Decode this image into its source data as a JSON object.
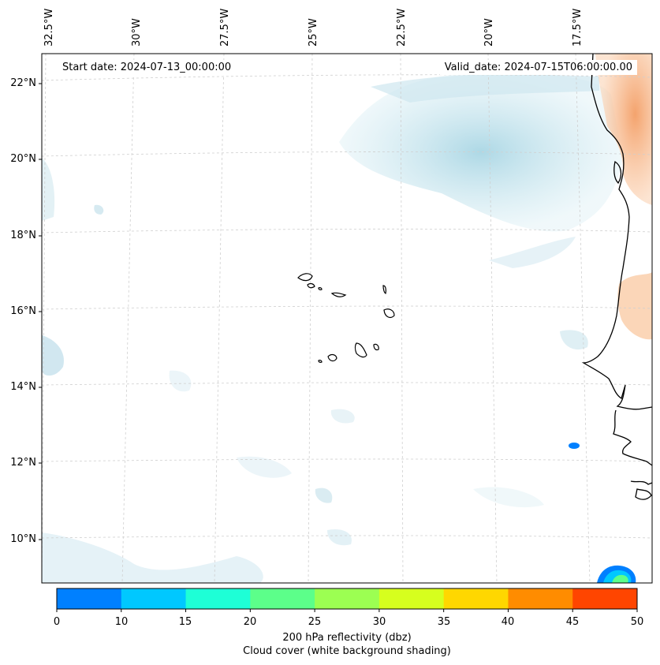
{
  "map": {
    "start_date": "Start date: 2024-07-13_00:00:00",
    "valid_date": "Valid_date: 2024-07-15T06:00:00.00",
    "lon_labels": [
      "32.5°W",
      "30°W",
      "27.5°W",
      "25°W",
      "22.5°W",
      "20°W",
      "17.5°W"
    ],
    "lat_labels": [
      "22°N",
      "20°N",
      "18°N",
      "16°N",
      "14°N",
      "12°N",
      "10°N"
    ]
  },
  "colorbar": {
    "ticks": [
      "0",
      "10",
      "15",
      "20",
      "25",
      "30",
      "35",
      "40",
      "45",
      "50"
    ],
    "colors": [
      "#0080ff",
      "#00c8ff",
      "#1effd6",
      "#5cff8a",
      "#9cff52",
      "#d6ff1e",
      "#ffd700",
      "#ff8c00",
      "#ff4500"
    ],
    "label_line1": "200 hPa reflectivity (dbz)",
    "label_line2": "Cloud cover (white background shading)"
  },
  "colors": {
    "cloud": "#c8e4ee",
    "dust": "#f7b98a",
    "coast": "#000000",
    "grid": "#cccccc"
  }
}
